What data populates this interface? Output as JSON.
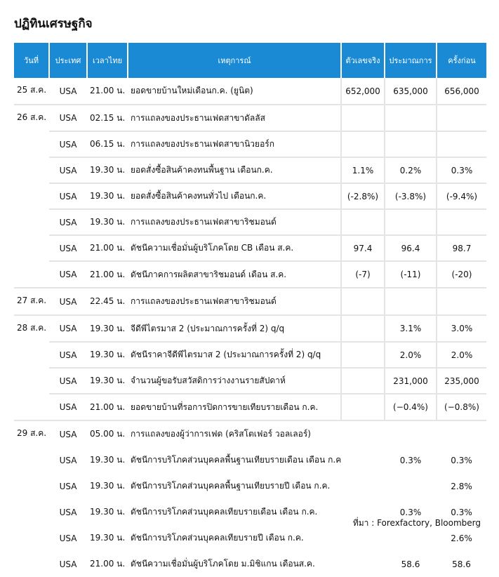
{
  "header": {
    "title": "ปฏิทินเศรษฐกิจ"
  },
  "table": {
    "columns": [
      "วันที่",
      "ประเทศ",
      "เวลาไทย",
      "เหตุการณ์",
      "ตัวเลขจริง",
      "ประมาณการ",
      "ครั้งก่อน"
    ],
    "groups": [
      {
        "date": "25 ส.ค.",
        "rows": [
          {
            "country": "USA",
            "time": "21.00 น.",
            "event": "ยอดขายบ้านใหม่เดือนก.ค. (ยูนิต)",
            "actual": "652,000",
            "forecast": "635,000",
            "previous": "656,000"
          }
        ]
      },
      {
        "date": "26 ส.ค.",
        "rows": [
          {
            "country": "USA",
            "time": "02.15 น.",
            "event": "การแถลงของประธานเฟดสาขาดัลลัส"
          },
          {
            "country": "USA",
            "time": "06.15 น.",
            "event": "การแถลงของประธานเฟดสาขานิวยอร์ก"
          },
          {
            "country": "USA",
            "time": "19.30 น.",
            "event": "ยอดสั่งซื้อสินค้าคงทนพื้นฐาน เดือนก.ค.",
            "actual": "1.1%",
            "forecast": "0.2%",
            "previous": "0.3%"
          },
          {
            "country": "USA",
            "time": "19.30 น.",
            "event": "ยอดสั่งซื้อสินค้าคงทนทั่วไป เดือนก.ค.",
            "actual": "(-2.8%)",
            "forecast": "(-3.8%)",
            "previous": "(-9.4%)"
          },
          {
            "country": "USA",
            "time": "19.30 น.",
            "event": "การแถลงของประธานเฟดสาขาริชมอนด์"
          },
          {
            "country": "USA",
            "time": "21.00 น.",
            "event": "ดัชนีความเชื่อมั่นผู้บริโภคโดย CB เดือน ส.ค.",
            "actual": "97.4",
            "forecast": "96.4",
            "previous": "98.7"
          },
          {
            "country": "USA",
            "time": "21.00 น.",
            "event": "ดัชนีภาคการผลิตสาขาริชมอนด์ เดือน ส.ค.",
            "actual": "(-7)",
            "forecast": "(-11)",
            "previous": "(-20)"
          }
        ]
      },
      {
        "date": "27 ส.ค.",
        "rows": [
          {
            "country": "USA",
            "time": "22.45 น.",
            "event": "การแถลงของประธานเฟดสาขาริชมอนด์"
          }
        ]
      },
      {
        "date": "28 ส.ค.",
        "rows": [
          {
            "country": "USA",
            "time": "19.30 น.",
            "event": "จีดีพีไตรมาส 2 (ประมาณการครั้งที่ 2) q/q",
            "forecast": "3.1%",
            "previous": "3.0%"
          },
          {
            "country": "USA",
            "time": "19.30 น.",
            "event": "ดัชนีราคาจีดีพีไตรมาส 2 (ประมาณการครั้งที่ 2) q/q",
            "forecast": "2.0%",
            "previous": "2.0%"
          },
          {
            "country": "USA",
            "time": "19.30 น.",
            "event": "จำนวนผู้ขอรับสวัสดิการว่างงานรายสัปดาห์",
            "forecast": "231,000",
            "previous": "235,000"
          },
          {
            "country": "USA",
            "time": "21.00 น.",
            "event": "ยอดขายบ้านที่รอการปิดการขายเทียบรายเดือน ก.ค.",
            "forecast": "(−0.4%)",
            "previous": "(−0.8%)"
          }
        ]
      },
      {
        "date": "29 ส.ค.",
        "rows": [
          {
            "country": "USA",
            "time": "05.00 น.",
            "event": "การแถลงของผู้ว่าการเฟด (คริสโตเฟอร์ วอลเลอร์)"
          },
          {
            "country": "USA",
            "time": "19.30 น.",
            "event": "ดัชนีการบริโภคส่วนบุคคลพื้นฐานเทียบรายเดือน เดือน ก.ค.",
            "forecast": "0.3%",
            "previous": "0.3%"
          },
          {
            "country": "USA",
            "time": "19.30 น.",
            "event": "ดัชนีการบริโภคส่วนบุคคลพื้นฐานเทียบรายปี เดือน ก.ค.",
            "previous": "2.8%"
          },
          {
            "country": "USA",
            "time": "19.30 น.",
            "event": "ดัชนีการบริโภคส่วนบุคคลเทียบรายเดือน เดือน ก.ค.",
            "forecast": "0.3%",
            "previous": "0.3%"
          },
          {
            "country": "USA",
            "time": "19.30 น.",
            "event": "ดัชนีการบริโภคส่วนบุคคลเทียบรายปี เดือน ก.ค.",
            "previous": "2.6%"
          },
          {
            "country": "USA",
            "time": "21.00 น.",
            "event": "ดัชนีความเชื่อมั่นผู้บริโภคโดย ม.มิชิแกน เดือนส.ค.",
            "forecast": "58.6",
            "previous": "58.6"
          }
        ]
      }
    ]
  },
  "footer": {
    "source": "ที่มา : Forexfactory, Bloomberg"
  }
}
